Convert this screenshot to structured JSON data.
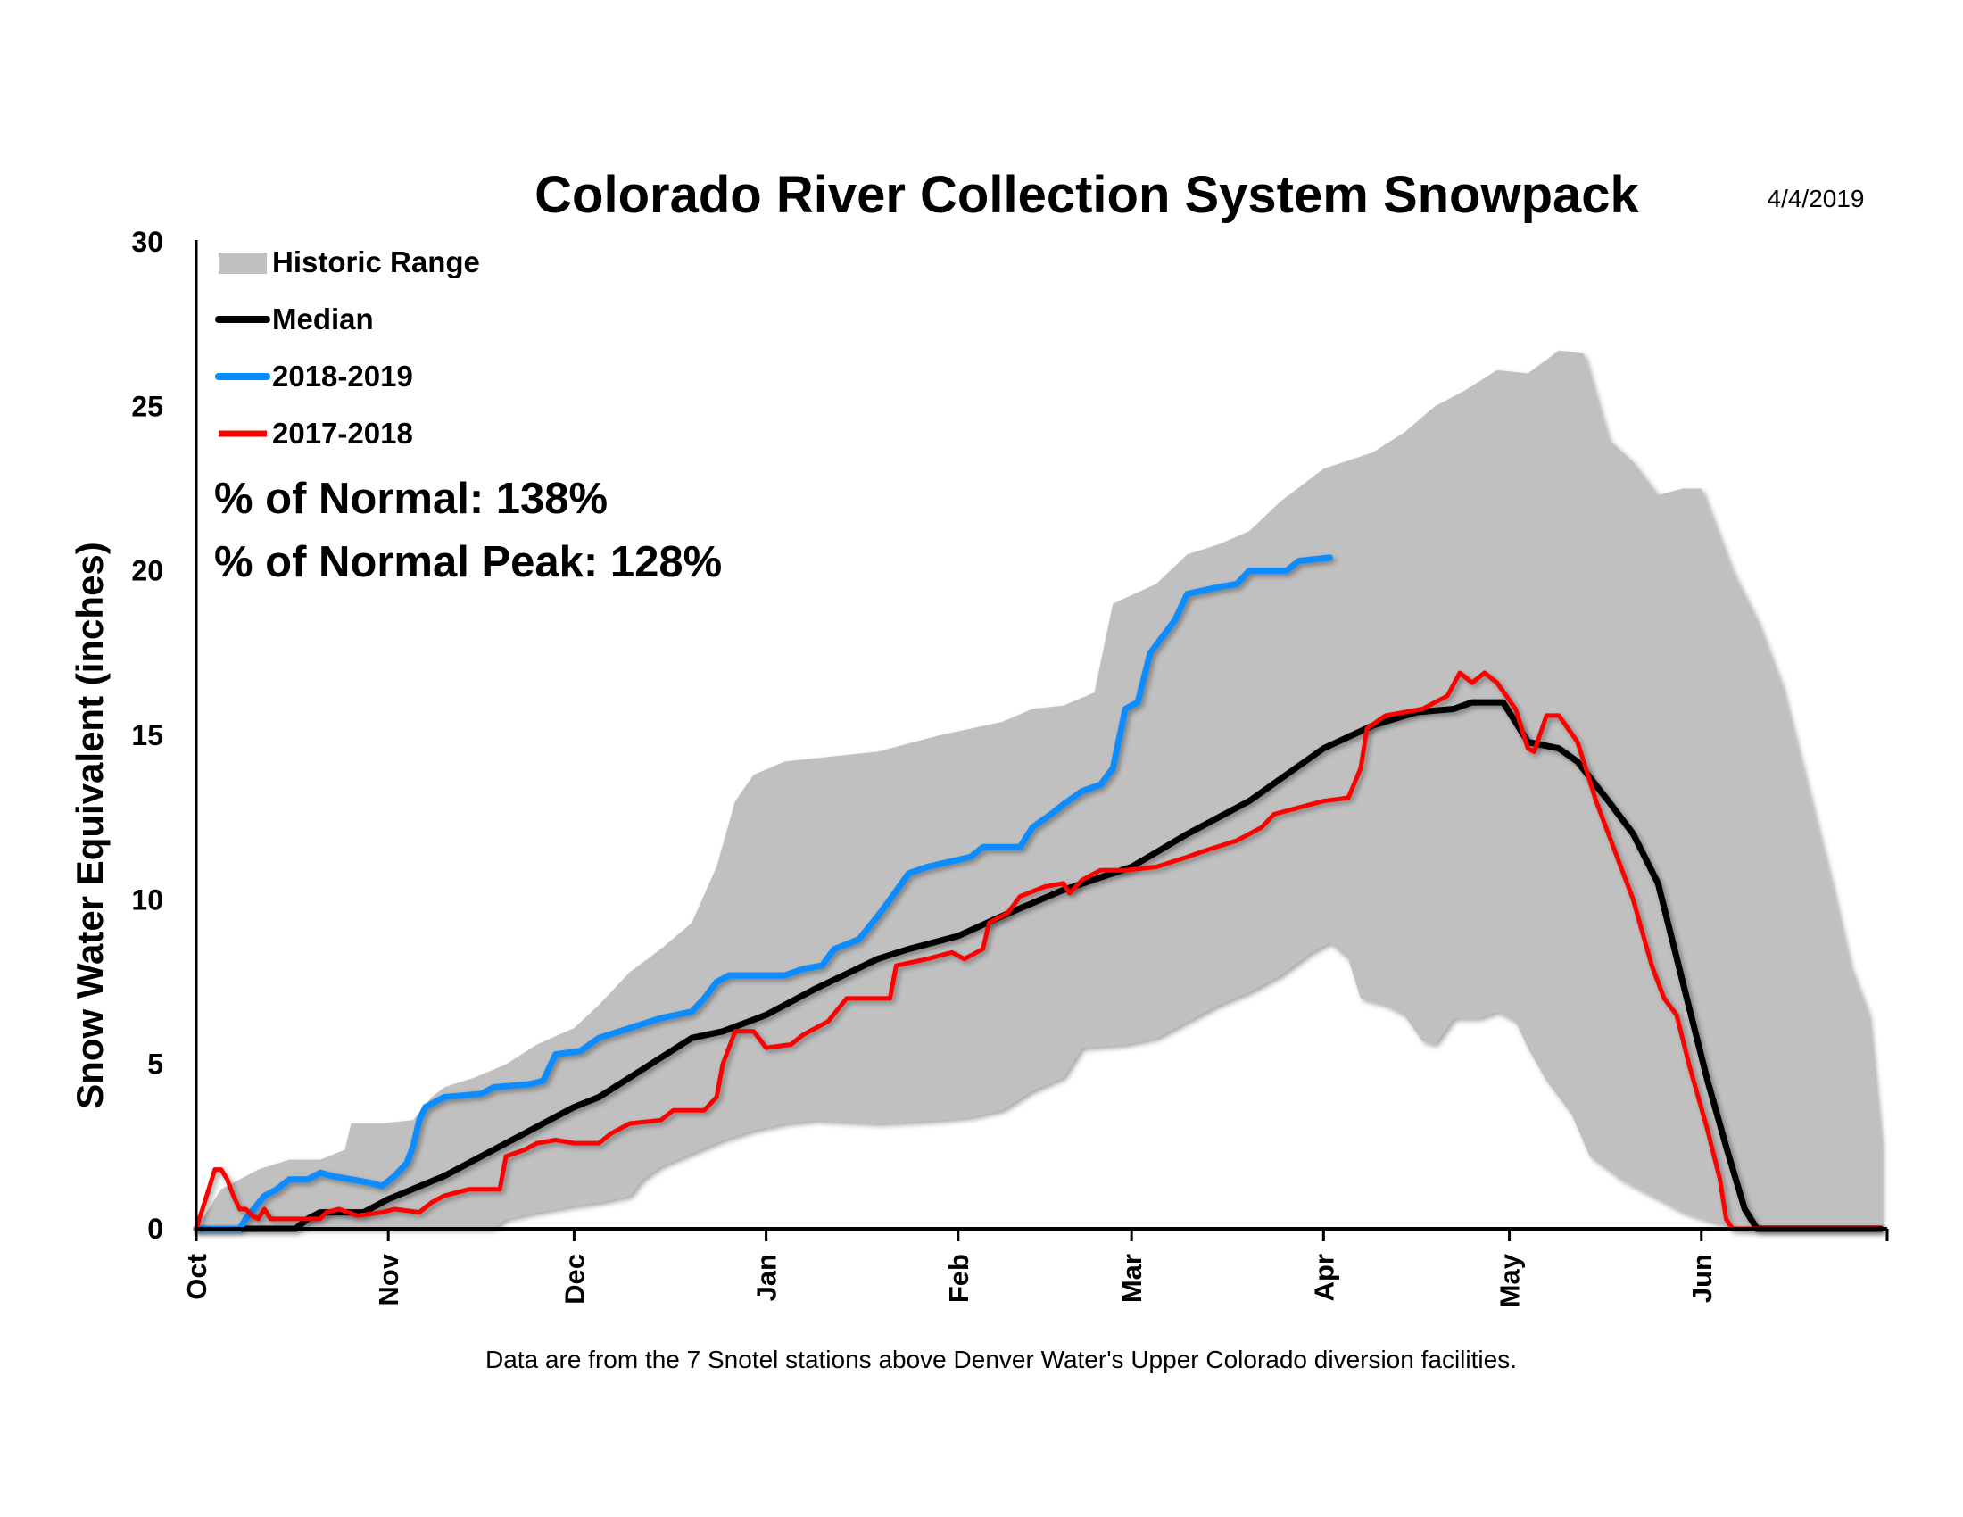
{
  "chart_data": {
    "type": "line",
    "title": "Colorado River Collection System Snowpack",
    "date": "4/4/2019",
    "ylabel": "Snow Water Equivalent (inches)",
    "xlabel": "",
    "ylim": [
      0,
      30
    ],
    "yticks": [
      0,
      5,
      10,
      15,
      20,
      25,
      30
    ],
    "xlim": [
      "10-01",
      "06-30"
    ],
    "xticks": [
      {
        "label": "Oct",
        "date": "10-01"
      },
      {
        "label": "Nov",
        "date": "11-01"
      },
      {
        "label": "Dec",
        "date": "12-01"
      },
      {
        "label": "Jan",
        "date": "01-01"
      },
      {
        "label": "Feb",
        "date": "02-01"
      },
      {
        "label": "Mar",
        "date": "03-01"
      },
      {
        "label": "Apr",
        "date": "04-01"
      },
      {
        "label": "May",
        "date": "05-01"
      },
      {
        "label": "Jun",
        "date": "06-01"
      }
    ],
    "grid": false,
    "legend_position": "top-left",
    "colors": {
      "range": "#c0c0c0",
      "median": "#000000",
      "current": "#0a8cff",
      "previous": "#ff0000"
    },
    "historic_range": {
      "name": "Historic Range",
      "max": [
        [
          "10-01",
          0
        ],
        [
          "10-05",
          1.2
        ],
        [
          "10-11",
          1.8
        ],
        [
          "10-16",
          2.1
        ],
        [
          "10-21",
          2.1
        ],
        [
          "10-25",
          2.4
        ],
        [
          "10-26",
          3.2
        ],
        [
          "10-31",
          3.2
        ],
        [
          "11-05",
          3.3
        ],
        [
          "11-08",
          4.0
        ],
        [
          "11-10",
          4.3
        ],
        [
          "11-15",
          4.6
        ],
        [
          "11-20",
          5.0
        ],
        [
          "11-25",
          5.6
        ],
        [
          "12-01",
          6.1
        ],
        [
          "12-05",
          6.8
        ],
        [
          "12-10",
          7.8
        ],
        [
          "12-15",
          8.5
        ],
        [
          "12-20",
          9.3
        ],
        [
          "12-24",
          11.0
        ],
        [
          "12-27",
          13.0
        ],
        [
          "12-30",
          13.8
        ],
        [
          "01-04",
          14.2
        ],
        [
          "01-09",
          14.3
        ],
        [
          "01-19",
          14.5
        ],
        [
          "01-29",
          15.0
        ],
        [
          "02-08",
          15.4
        ],
        [
          "02-13",
          15.8
        ],
        [
          "02-18",
          15.9
        ],
        [
          "02-23",
          16.3
        ],
        [
          "02-26",
          19.0
        ],
        [
          "03-05",
          19.6
        ],
        [
          "03-10",
          20.5
        ],
        [
          "03-15",
          20.8
        ],
        [
          "03-20",
          21.2
        ],
        [
          "03-25",
          22.1
        ],
        [
          "04-01",
          23.1
        ],
        [
          "04-09",
          23.6
        ],
        [
          "04-14",
          24.2
        ],
        [
          "04-19",
          25.0
        ],
        [
          "04-24",
          25.5
        ],
        [
          "04-29",
          26.1
        ],
        [
          "05-04",
          26.0
        ],
        [
          "05-09",
          26.7
        ],
        [
          "05-13",
          26.6
        ],
        [
          "05-17",
          24.0
        ],
        [
          "05-21",
          23.3
        ],
        [
          "05-25",
          22.3
        ],
        [
          "05-29",
          22.5
        ],
        [
          "06-01",
          22.5
        ],
        [
          "06-06",
          20.0
        ],
        [
          "06-10",
          18.5
        ],
        [
          "06-14",
          16.5
        ],
        [
          "06-18",
          13.5
        ],
        [
          "06-22",
          10.5
        ],
        [
          "06-25",
          8.0
        ],
        [
          "06-28",
          6.5
        ],
        [
          "06-30",
          2.6
        ]
      ],
      "min": [
        [
          "10-01",
          0
        ],
        [
          "11-18",
          0
        ],
        [
          "11-20",
          0.3
        ],
        [
          "11-25",
          0.5
        ],
        [
          "12-01",
          0.7
        ],
        [
          "12-05",
          0.8
        ],
        [
          "12-10",
          1.0
        ],
        [
          "12-12",
          1.5
        ],
        [
          "12-15",
          1.9
        ],
        [
          "12-20",
          2.3
        ],
        [
          "12-25",
          2.7
        ],
        [
          "12-30",
          3.0
        ],
        [
          "01-04",
          3.2
        ],
        [
          "01-09",
          3.3
        ],
        [
          "01-19",
          3.2
        ],
        [
          "01-29",
          3.3
        ],
        [
          "02-03",
          3.4
        ],
        [
          "02-08",
          3.6
        ],
        [
          "02-13",
          4.2
        ],
        [
          "02-18",
          4.6
        ],
        [
          "02-21",
          5.5
        ],
        [
          "02-28",
          5.6
        ],
        [
          "03-05",
          5.8
        ],
        [
          "03-10",
          6.3
        ],
        [
          "03-15",
          6.8
        ],
        [
          "03-20",
          7.2
        ],
        [
          "03-25",
          7.7
        ],
        [
          "03-30",
          8.4
        ],
        [
          "04-02",
          8.7
        ],
        [
          "04-05",
          8.2
        ],
        [
          "04-07",
          7.0
        ],
        [
          "04-11",
          6.8
        ],
        [
          "04-14",
          6.5
        ],
        [
          "04-17",
          5.7
        ],
        [
          "04-19",
          5.6
        ],
        [
          "04-22",
          6.4
        ],
        [
          "04-26",
          6.4
        ],
        [
          "04-29",
          6.6
        ],
        [
          "05-02",
          6.3
        ],
        [
          "05-04",
          5.5
        ],
        [
          "05-07",
          4.5
        ],
        [
          "05-11",
          3.5
        ],
        [
          "05-14",
          2.2
        ],
        [
          "05-19",
          1.5
        ],
        [
          "05-24",
          1.0
        ],
        [
          "05-29",
          0.5
        ],
        [
          "06-03",
          0.2
        ],
        [
          "06-08",
          0
        ],
        [
          "06-30",
          0
        ]
      ]
    },
    "series": [
      {
        "name": "Median",
        "key": "median",
        "values": [
          [
            "10-01",
            0
          ],
          [
            "10-17",
            0
          ],
          [
            "10-19",
            0.3
          ],
          [
            "10-21",
            0.5
          ],
          [
            "10-28",
            0.5
          ],
          [
            "11-01",
            0.9
          ],
          [
            "11-10",
            1.6
          ],
          [
            "11-20",
            2.6
          ],
          [
            "12-01",
            3.7
          ],
          [
            "12-05",
            4.0
          ],
          [
            "12-10",
            4.6
          ],
          [
            "12-15",
            5.2
          ],
          [
            "12-20",
            5.8
          ],
          [
            "12-25",
            6.0
          ],
          [
            "01-01",
            6.5
          ],
          [
            "01-09",
            7.3
          ],
          [
            "01-19",
            8.2
          ],
          [
            "01-24",
            8.5
          ],
          [
            "02-01",
            8.9
          ],
          [
            "02-08",
            9.5
          ],
          [
            "02-18",
            10.3
          ],
          [
            "03-01",
            11.0
          ],
          [
            "03-10",
            12.0
          ],
          [
            "03-20",
            13.0
          ],
          [
            "04-01",
            14.6
          ],
          [
            "04-09",
            15.3
          ],
          [
            "04-16",
            15.7
          ],
          [
            "04-22",
            15.8
          ],
          [
            "04-25",
            16.0
          ],
          [
            "04-30",
            16.0
          ],
          [
            "05-04",
            14.8
          ],
          [
            "05-09",
            14.6
          ],
          [
            "05-12",
            14.2
          ],
          [
            "05-17",
            13.0
          ],
          [
            "05-21",
            12.0
          ],
          [
            "05-25",
            10.5
          ],
          [
            "05-29",
            7.5
          ],
          [
            "06-02",
            4.5
          ],
          [
            "06-05",
            2.5
          ],
          [
            "06-08",
            0.6
          ],
          [
            "06-10",
            0
          ],
          [
            "06-30",
            0
          ]
        ]
      },
      {
        "name": "2018-2019",
        "key": "current",
        "values": [
          [
            "10-01",
            0
          ],
          [
            "10-08",
            0
          ],
          [
            "10-09",
            0.3
          ],
          [
            "10-12",
            1.0
          ],
          [
            "10-14",
            1.2
          ],
          [
            "10-16",
            1.5
          ],
          [
            "10-19",
            1.5
          ],
          [
            "10-21",
            1.7
          ],
          [
            "10-23",
            1.6
          ],
          [
            "10-26",
            1.5
          ],
          [
            "10-29",
            1.4
          ],
          [
            "10-31",
            1.3
          ],
          [
            "11-02",
            1.6
          ],
          [
            "11-04",
            2.0
          ],
          [
            "11-05",
            2.5
          ],
          [
            "11-06",
            3.3
          ],
          [
            "11-07",
            3.7
          ],
          [
            "11-10",
            4.0
          ],
          [
            "11-16",
            4.1
          ],
          [
            "11-18",
            4.3
          ],
          [
            "11-24",
            4.4
          ],
          [
            "11-26",
            4.5
          ],
          [
            "11-28",
            5.3
          ],
          [
            "12-02",
            5.4
          ],
          [
            "12-05",
            5.8
          ],
          [
            "12-10",
            6.1
          ],
          [
            "12-15",
            6.4
          ],
          [
            "12-20",
            6.6
          ],
          [
            "12-22",
            7.0
          ],
          [
            "12-24",
            7.5
          ],
          [
            "12-26",
            7.7
          ],
          [
            "01-04",
            7.7
          ],
          [
            "01-07",
            7.9
          ],
          [
            "01-10",
            8.0
          ],
          [
            "01-12",
            8.5
          ],
          [
            "01-16",
            8.8
          ],
          [
            "01-19",
            9.5
          ],
          [
            "01-21",
            10.0
          ],
          [
            "01-24",
            10.8
          ],
          [
            "01-27",
            11.0
          ],
          [
            "02-03",
            11.3
          ],
          [
            "02-05",
            11.6
          ],
          [
            "02-11",
            11.6
          ],
          [
            "02-13",
            12.2
          ],
          [
            "02-16",
            12.6
          ],
          [
            "02-18",
            12.9
          ],
          [
            "02-21",
            13.3
          ],
          [
            "02-24",
            13.5
          ],
          [
            "02-26",
            14.0
          ],
          [
            "02-28",
            15.8
          ],
          [
            "03-02",
            16.0
          ],
          [
            "03-04",
            17.5
          ],
          [
            "03-06",
            18.0
          ],
          [
            "03-08",
            18.5
          ],
          [
            "03-10",
            19.3
          ],
          [
            "03-15",
            19.5
          ],
          [
            "03-18",
            19.6
          ],
          [
            "03-20",
            20.0
          ],
          [
            "03-26",
            20.0
          ],
          [
            "03-28",
            20.3
          ],
          [
            "04-02",
            20.4
          ]
        ]
      },
      {
        "name": "2017-2018",
        "key": "previous",
        "values": [
          [
            "10-01",
            0
          ],
          [
            "10-03",
            1.2
          ],
          [
            "10-04",
            1.8
          ],
          [
            "10-05",
            1.8
          ],
          [
            "10-06",
            1.5
          ],
          [
            "10-07",
            1.0
          ],
          [
            "10-08",
            0.6
          ],
          [
            "10-09",
            0.6
          ],
          [
            "10-10",
            0.4
          ],
          [
            "10-11",
            0.3
          ],
          [
            "10-12",
            0.6
          ],
          [
            "10-13",
            0.3
          ],
          [
            "10-21",
            0.3
          ],
          [
            "10-22",
            0.5
          ],
          [
            "10-24",
            0.6
          ],
          [
            "10-27",
            0.4
          ],
          [
            "10-31",
            0.5
          ],
          [
            "11-02",
            0.6
          ],
          [
            "11-06",
            0.5
          ],
          [
            "11-08",
            0.8
          ],
          [
            "11-10",
            1.0
          ],
          [
            "11-14",
            1.2
          ],
          [
            "11-19",
            1.2
          ],
          [
            "11-20",
            2.2
          ],
          [
            "11-23",
            2.4
          ],
          [
            "11-25",
            2.6
          ],
          [
            "11-28",
            2.7
          ],
          [
            "12-01",
            2.6
          ],
          [
            "12-05",
            2.6
          ],
          [
            "12-07",
            2.9
          ],
          [
            "12-10",
            3.2
          ],
          [
            "12-15",
            3.3
          ],
          [
            "12-17",
            3.6
          ],
          [
            "12-22",
            3.6
          ],
          [
            "12-24",
            4.0
          ],
          [
            "12-25",
            5.0
          ],
          [
            "12-27",
            6.0
          ],
          [
            "12-30",
            6.0
          ],
          [
            "01-01",
            5.5
          ],
          [
            "01-05",
            5.6
          ],
          [
            "01-07",
            5.9
          ],
          [
            "01-11",
            6.3
          ],
          [
            "01-14",
            7.0
          ],
          [
            "01-21",
            7.0
          ],
          [
            "01-22",
            8.0
          ],
          [
            "01-27",
            8.2
          ],
          [
            "01-31",
            8.4
          ],
          [
            "02-02",
            8.2
          ],
          [
            "02-05",
            8.5
          ],
          [
            "02-06",
            9.3
          ],
          [
            "02-09",
            9.6
          ],
          [
            "02-11",
            10.1
          ],
          [
            "02-15",
            10.4
          ],
          [
            "02-18",
            10.5
          ],
          [
            "02-19",
            10.2
          ],
          [
            "02-21",
            10.6
          ],
          [
            "02-24",
            10.9
          ],
          [
            "02-28",
            10.9
          ],
          [
            "03-05",
            11.0
          ],
          [
            "03-10",
            11.3
          ],
          [
            "03-13",
            11.5
          ],
          [
            "03-18",
            11.8
          ],
          [
            "03-22",
            12.2
          ],
          [
            "03-24",
            12.6
          ],
          [
            "03-28",
            12.8
          ],
          [
            "04-01",
            13.0
          ],
          [
            "04-05",
            13.1
          ],
          [
            "04-07",
            14.0
          ],
          [
            "04-08",
            15.2
          ],
          [
            "04-11",
            15.6
          ],
          [
            "04-17",
            15.8
          ],
          [
            "04-19",
            16.0
          ],
          [
            "04-21",
            16.2
          ],
          [
            "04-23",
            16.9
          ],
          [
            "04-25",
            16.6
          ],
          [
            "04-27",
            16.9
          ],
          [
            "04-29",
            16.6
          ],
          [
            "05-02",
            15.8
          ],
          [
            "05-04",
            14.6
          ],
          [
            "05-05",
            14.5
          ],
          [
            "05-07",
            15.6
          ],
          [
            "05-09",
            15.6
          ],
          [
            "05-12",
            14.8
          ],
          [
            "05-15",
            13.0
          ],
          [
            "05-18",
            11.5
          ],
          [
            "05-21",
            10.0
          ],
          [
            "05-24",
            8.0
          ],
          [
            "05-26",
            7.0
          ],
          [
            "05-28",
            6.5
          ],
          [
            "05-30",
            5.0
          ],
          [
            "06-02",
            3.0
          ],
          [
            "06-04",
            1.5
          ],
          [
            "06-05",
            0.3
          ],
          [
            "06-06",
            0
          ],
          [
            "06-30",
            0
          ]
        ]
      }
    ],
    "annotations": {
      "pct_normal": "% of Normal: 138%",
      "pct_normal_peak": "% of Normal Peak: 128%"
    },
    "footnote": "Data are from the 7 Snotel stations above Denver Water's Upper Colorado diversion facilities."
  }
}
